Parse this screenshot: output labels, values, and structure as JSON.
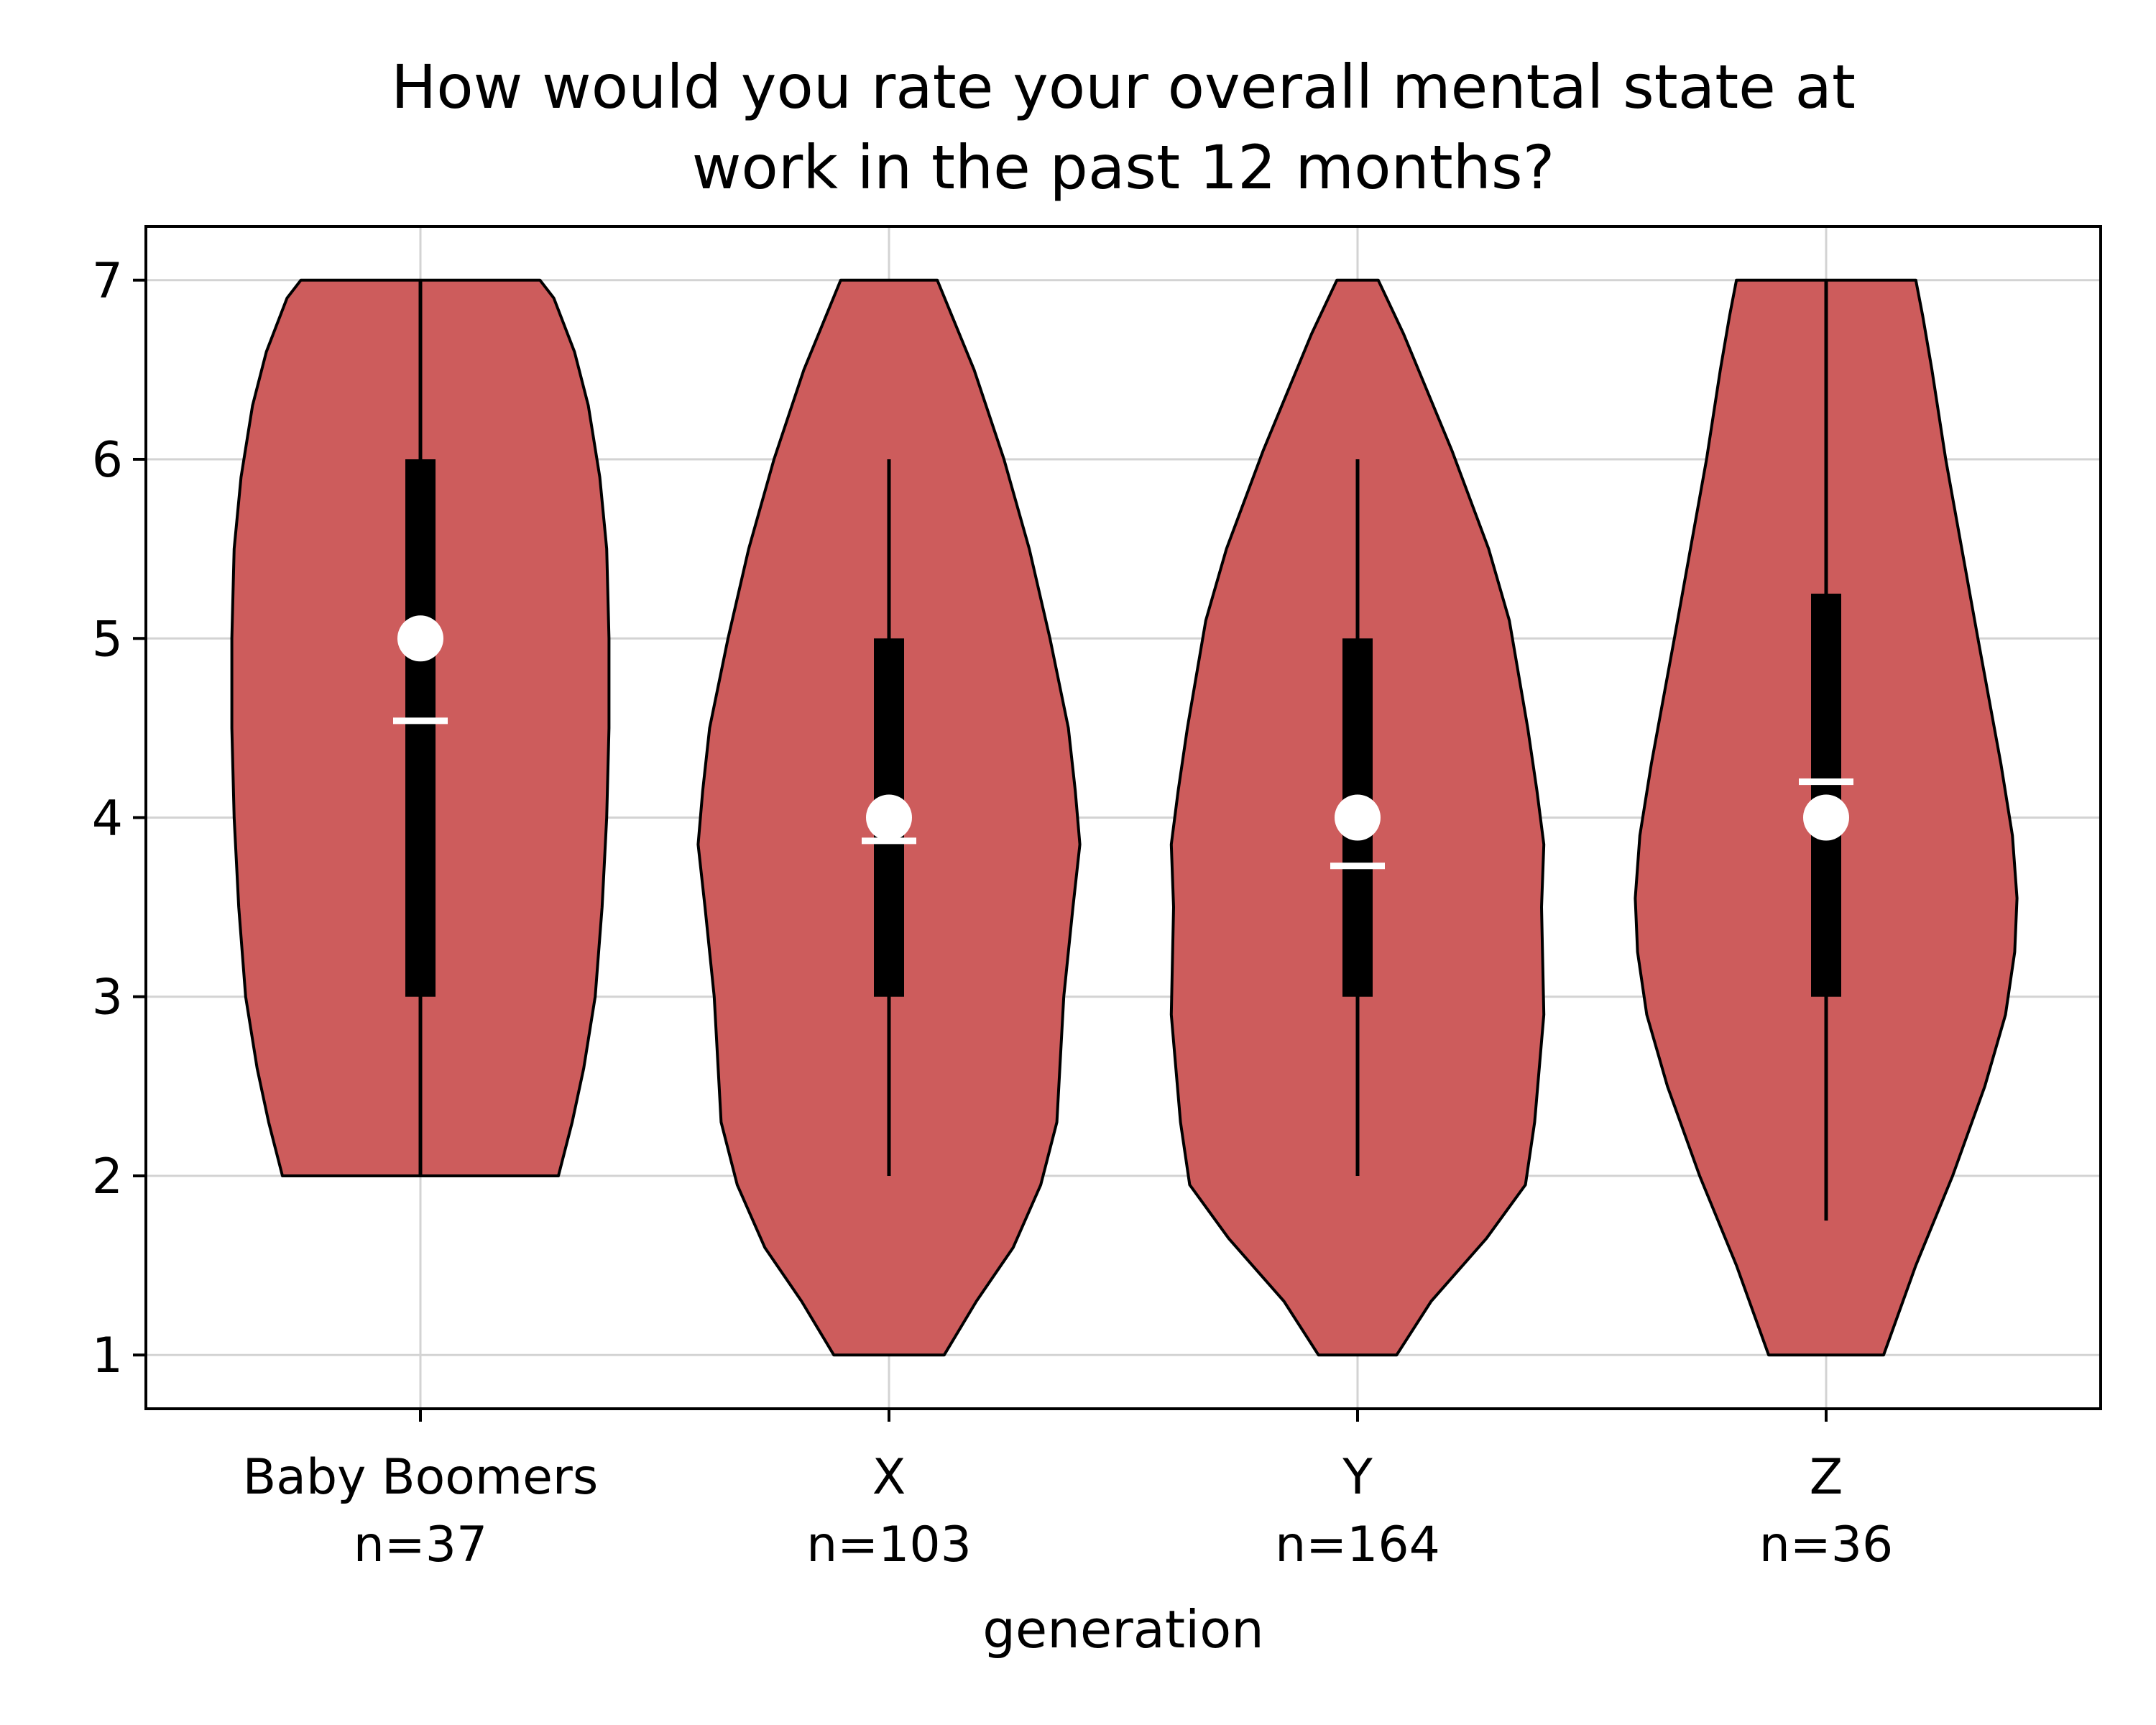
{
  "chart_data": {
    "type": "violin",
    "title_lines": [
      "How would you rate your overall mental state at",
      "work in the past 12 months?"
    ],
    "xlabel": "generation",
    "ylabel": "",
    "ylim": [
      0.7,
      7.3
    ],
    "yticks": [
      1,
      2,
      3,
      4,
      5,
      6,
      7
    ],
    "grid": true,
    "colors": {
      "violin_fill": "#cd5c5c",
      "violin_edge": "#000000",
      "grid": "#d3d3d3",
      "box": "#000000",
      "median_marker": "#ffffff",
      "mean_marker": "#ffffff"
    },
    "categories": [
      {
        "name": "Baby Boomers",
        "n_label": "n=37",
        "min": 2,
        "max": 7,
        "q1": 3,
        "q3": 6,
        "median": 5,
        "mean": 4.54,
        "whisker_low": 2,
        "whisker_high": 7,
        "density": [
          [
            2,
            0.6
          ],
          [
            2.3,
            0.66
          ],
          [
            2.6,
            0.71
          ],
          [
            3,
            0.76
          ],
          [
            3.5,
            0.79
          ],
          [
            4,
            0.81
          ],
          [
            4.5,
            0.82
          ],
          [
            5,
            0.82
          ],
          [
            5.5,
            0.81
          ],
          [
            5.9,
            0.78
          ],
          [
            6.3,
            0.73
          ],
          [
            6.6,
            0.67
          ],
          [
            6.9,
            0.58
          ],
          [
            7,
            0.52
          ]
        ]
      },
      {
        "name": "X",
        "n_label": "n=103",
        "min": 1,
        "max": 7,
        "q1": 3,
        "q3": 5,
        "median": 4,
        "mean": 3.87,
        "whisker_low": 2,
        "whisker_high": 6,
        "density": [
          [
            1,
            0.24
          ],
          [
            1.3,
            0.38
          ],
          [
            1.6,
            0.54
          ],
          [
            1.95,
            0.66
          ],
          [
            2.3,
            0.73
          ],
          [
            3,
            0.76
          ],
          [
            3.5,
            0.8
          ],
          [
            3.85,
            0.83
          ],
          [
            4.15,
            0.81
          ],
          [
            4.5,
            0.78
          ],
          [
            5,
            0.7
          ],
          [
            5.5,
            0.61
          ],
          [
            6,
            0.5
          ],
          [
            6.5,
            0.37
          ],
          [
            7,
            0.21
          ]
        ]
      },
      {
        "name": "Y",
        "n_label": "n=164",
        "min": 1,
        "max": 7,
        "q1": 3,
        "q3": 5,
        "median": 4,
        "mean": 3.73,
        "whisker_low": 2,
        "whisker_high": 6,
        "density": [
          [
            1,
            0.17
          ],
          [
            1.3,
            0.32
          ],
          [
            1.65,
            0.56
          ],
          [
            1.95,
            0.73
          ],
          [
            2.3,
            0.77
          ],
          [
            2.9,
            0.81
          ],
          [
            3.5,
            0.8
          ],
          [
            3.85,
            0.81
          ],
          [
            4.15,
            0.78
          ],
          [
            4.5,
            0.74
          ],
          [
            5.1,
            0.66
          ],
          [
            5.5,
            0.57
          ],
          [
            6.05,
            0.41
          ],
          [
            6.7,
            0.2
          ],
          [
            7,
            0.09
          ]
        ]
      },
      {
        "name": "Z",
        "n_label": "n=36",
        "min": 1,
        "max": 7,
        "q1": 3,
        "q3": 5.25,
        "median": 4,
        "mean": 4.2,
        "whisker_low": 1.75,
        "whisker_high": 7,
        "density": [
          [
            1,
            0.25
          ],
          [
            1.5,
            0.39
          ],
          [
            2,
            0.55
          ],
          [
            2.5,
            0.69
          ],
          [
            2.9,
            0.78
          ],
          [
            3.25,
            0.82
          ],
          [
            3.55,
            0.83
          ],
          [
            3.9,
            0.81
          ],
          [
            4.3,
            0.76
          ],
          [
            5,
            0.66
          ],
          [
            5.5,
            0.59
          ],
          [
            6,
            0.52
          ],
          [
            6.5,
            0.46
          ],
          [
            6.8,
            0.42
          ],
          [
            7,
            0.39
          ]
        ]
      }
    ]
  }
}
